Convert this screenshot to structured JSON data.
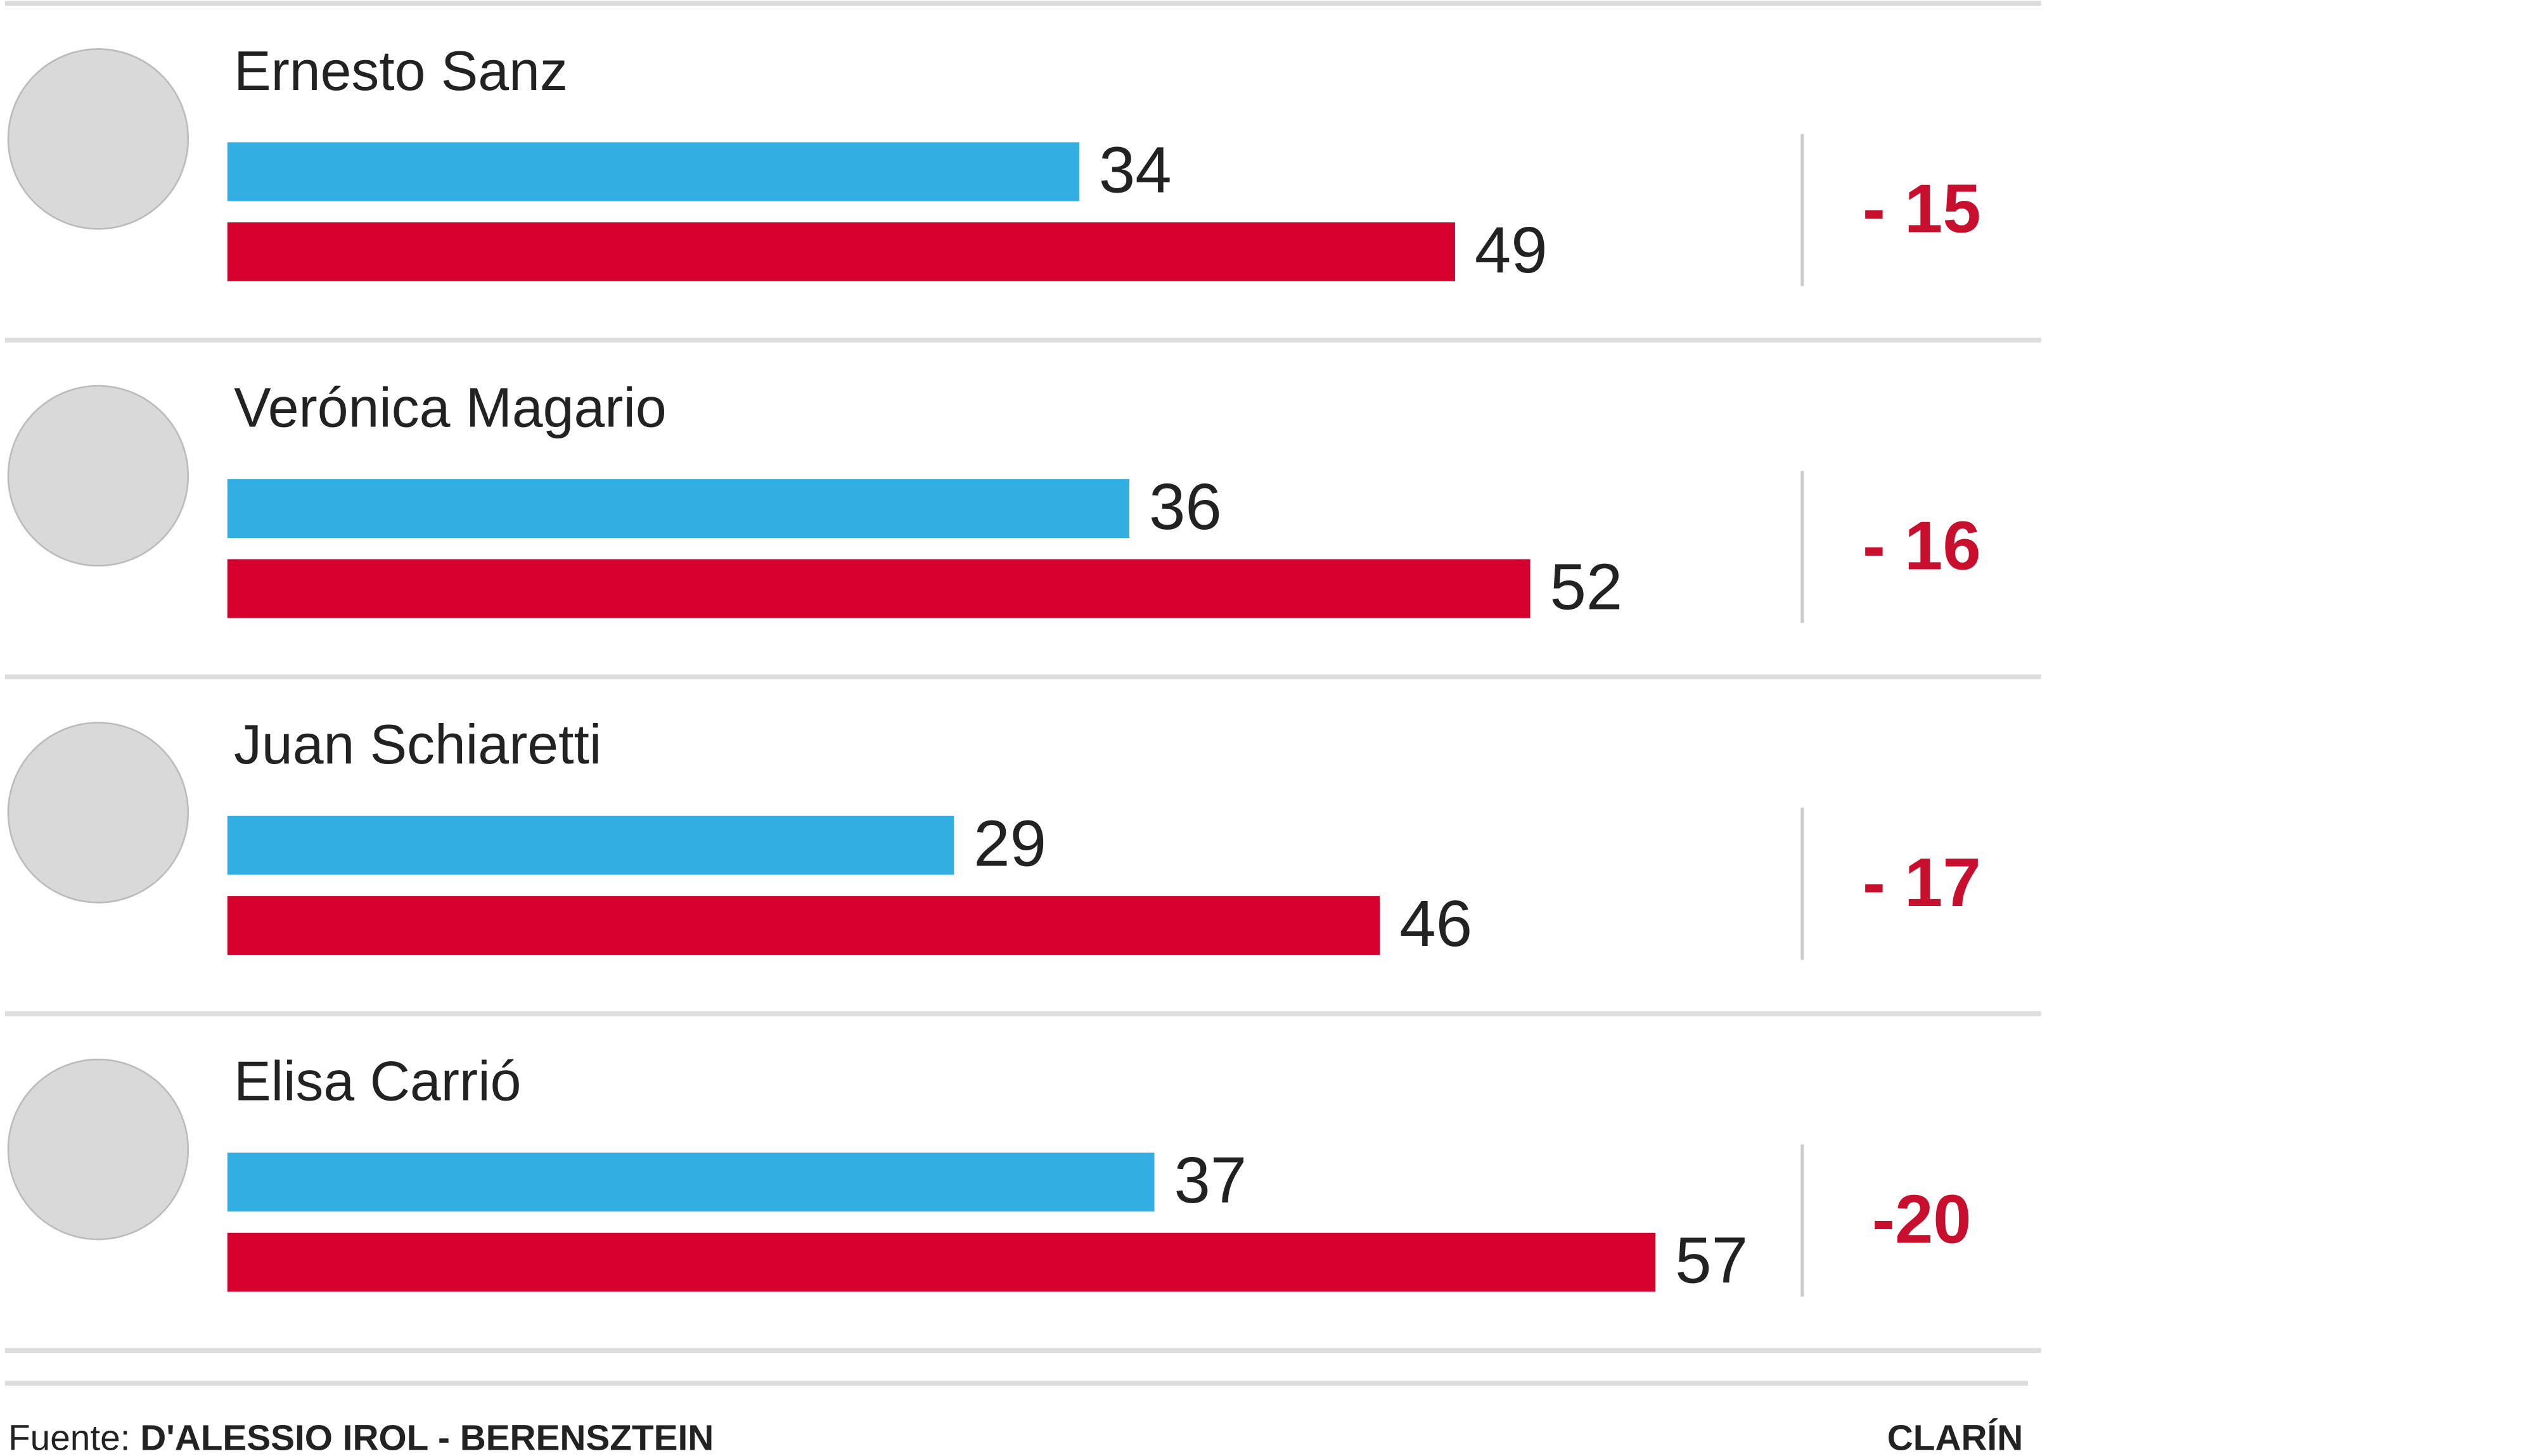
{
  "chart_data": {
    "type": "bar",
    "categories": [
      "Ernesto Sanz",
      "Verónica Magario",
      "Juan Schiaretti",
      "Elisa Carrió"
    ],
    "series": [
      {
        "color": "#33aee3",
        "values": [
          34,
          36,
          29,
          37
        ]
      },
      {
        "color": "#d6002f",
        "values": [
          49,
          52,
          46,
          57
        ]
      }
    ],
    "differences": {
      "color": "#c8102e",
      "values": [
        -15,
        -16,
        -17,
        -20
      ],
      "value_labels": [
        "- 15",
        "- 16",
        "- 17",
        "-20"
      ]
    },
    "source_label": "Fuente:",
    "source": "D'ALESSIO IROL - BERENSZTEIN",
    "credit": "CLARÍN"
  }
}
